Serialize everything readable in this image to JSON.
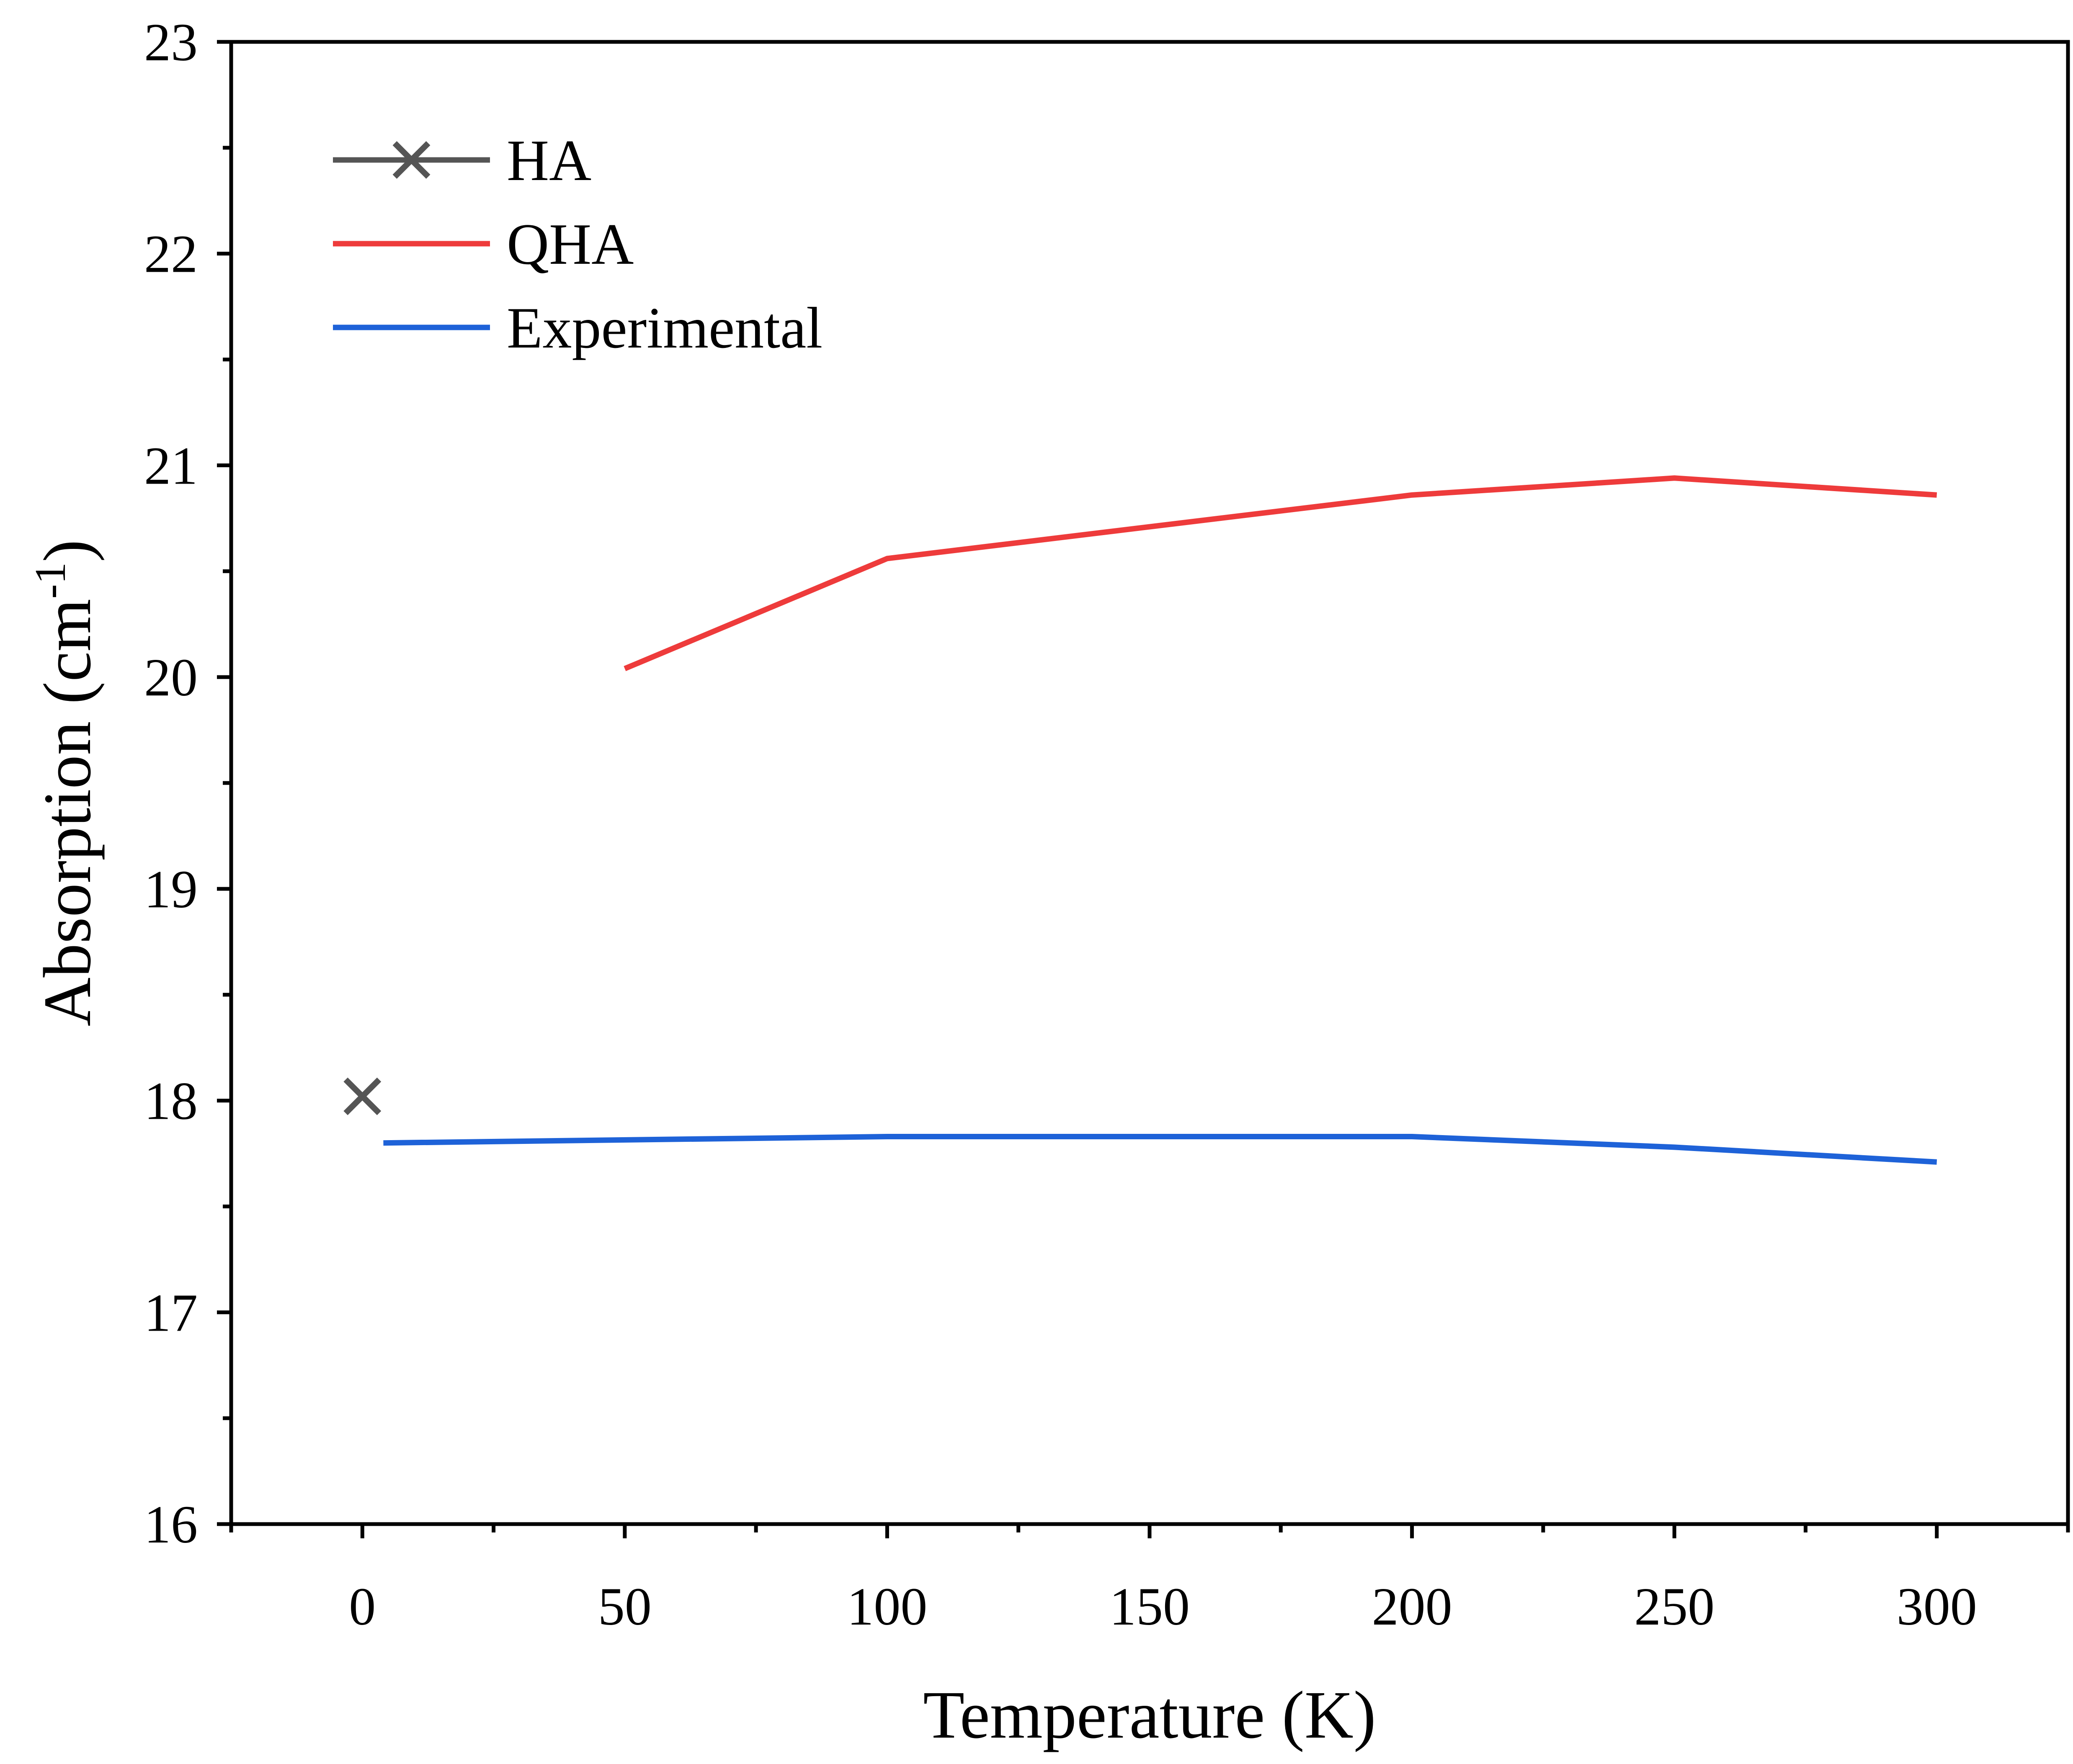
{
  "chart_data": {
    "type": "line",
    "xlabel": "Temperature (K)",
    "ylabel_main": "Absorption (cm",
    "ylabel_sup": "-1",
    "ylabel_tail": ")",
    "xlim": [
      -25,
      325
    ],
    "ylim": [
      16,
      23
    ],
    "xticks": [
      0,
      50,
      100,
      150,
      200,
      250,
      300
    ],
    "yticks": [
      16,
      17,
      18,
      19,
      20,
      21,
      22,
      23
    ],
    "grid": false,
    "legend_position": "top-left",
    "series": [
      {
        "name": "HA",
        "color": "#555555",
        "marker": "x",
        "line": false,
        "x": [
          0
        ],
        "y": [
          18.02
        ]
      },
      {
        "name": "QHA",
        "color": "#ee3b3b",
        "marker": "none",
        "line": true,
        "x": [
          50,
          100,
          200,
          250,
          300
        ],
        "y": [
          20.04,
          20.56,
          20.86,
          20.94,
          20.86
        ]
      },
      {
        "name": "Experimental",
        "color": "#1e62d8",
        "marker": "none",
        "line": true,
        "x": [
          4,
          100,
          200,
          250,
          300
        ],
        "y": [
          17.8,
          17.83,
          17.83,
          17.78,
          17.71
        ]
      }
    ]
  }
}
